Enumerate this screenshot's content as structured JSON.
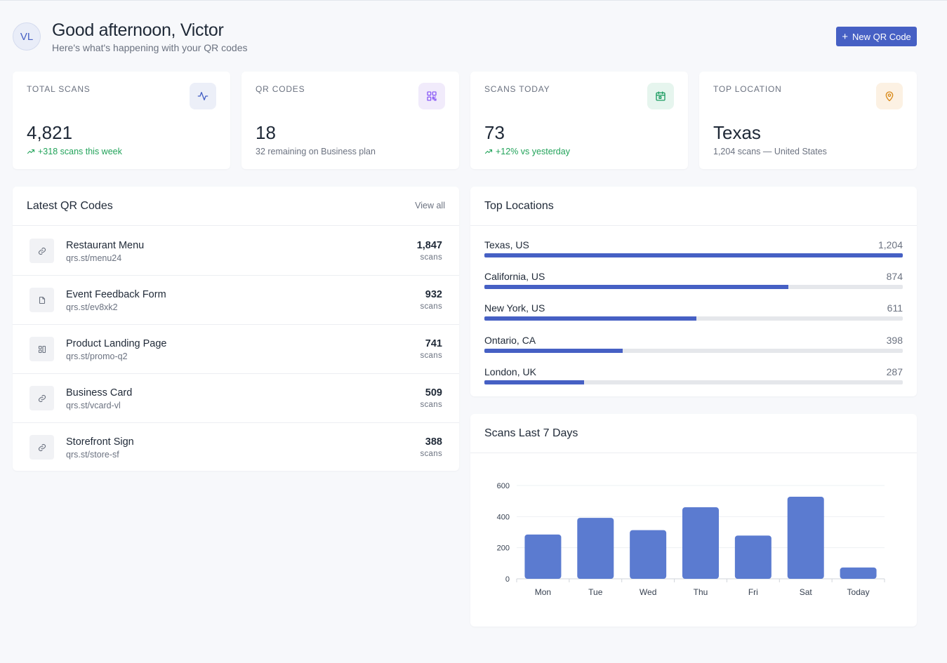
{
  "header": {
    "avatar_initials": "VL",
    "greeting": "Good afternoon, Victor",
    "subtitle": "Here's what's happening with your QR codes",
    "new_button_label": "New QR Code",
    "new_button_icon": "plus-icon"
  },
  "stats": [
    {
      "label": "TOTAL SCANS",
      "value": "4,821",
      "note": "+318 scans this week",
      "trend": "up",
      "icon": "activity-icon",
      "icon_bg": "#eceff8",
      "icon_color": "#4660c4"
    },
    {
      "label": "QR CODES",
      "value": "18",
      "note": "32 remaining on Business plan",
      "trend": "neutral",
      "icon": "qr-code-icon",
      "icon_bg": "#f1ebfb",
      "icon_color": "#8b5cf6"
    },
    {
      "label": "SCANS TODAY",
      "value": "73",
      "note": "+12% vs yesterday",
      "trend": "up",
      "icon": "calendar-icon",
      "icon_bg": "#e6f5ee",
      "icon_color": "#1f9d63"
    },
    {
      "label": "TOP LOCATION",
      "value": "Texas",
      "note": "1,204 scans — United States",
      "trend": "neutral",
      "icon": "map-pin-icon",
      "icon_bg": "#fcf1e3",
      "icon_color": "#d98b1c"
    }
  ],
  "latest": {
    "title": "Latest QR Codes",
    "view_all": "View all",
    "items": [
      {
        "name": "Restaurant Menu",
        "url": "qrs.st/menu24",
        "count": "1,847",
        "unit": "scans",
        "icon": "link-icon"
      },
      {
        "name": "Event Feedback Form",
        "url": "qrs.st/ev8xk2",
        "count": "932",
        "unit": "scans",
        "icon": "file-icon"
      },
      {
        "name": "Product Landing Page",
        "url": "qrs.st/promo-q2",
        "count": "741",
        "unit": "scans",
        "icon": "layout-icon"
      },
      {
        "name": "Business Card",
        "url": "qrs.st/vcard-vl",
        "count": "509",
        "unit": "scans",
        "icon": "link-icon"
      },
      {
        "name": "Storefront Sign",
        "url": "qrs.st/store-sf",
        "count": "388",
        "unit": "scans",
        "icon": "link-icon"
      }
    ]
  },
  "locations": {
    "title": "Top Locations",
    "max": 1204,
    "items": [
      {
        "name": "Texas, US",
        "value": "1,204",
        "scans": 1204
      },
      {
        "name": "California, US",
        "value": "874",
        "scans": 874
      },
      {
        "name": "New York, US",
        "value": "611",
        "scans": 611
      },
      {
        "name": "Ontario, CA",
        "value": "398",
        "scans": 398
      },
      {
        "name": "London, UK",
        "value": "287",
        "scans": 287
      }
    ]
  },
  "weekly": {
    "title": "Scans Last 7 Days"
  },
  "chart_data": {
    "type": "bar",
    "categories": [
      "Mon",
      "Tue",
      "Wed",
      "Thu",
      "Fri",
      "Sat",
      "Today"
    ],
    "values": [
      285,
      392,
      313,
      460,
      278,
      528,
      73
    ],
    "yticks": [
      0,
      200,
      400,
      600
    ],
    "ylim": [
      0,
      600
    ],
    "color": "#5b7bd0",
    "grid": true
  }
}
